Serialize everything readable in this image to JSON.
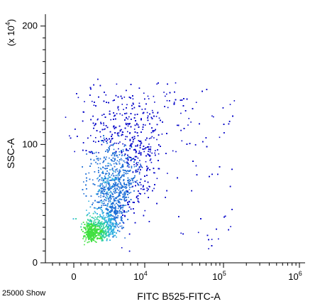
{
  "chart_data": {
    "type": "scatter",
    "style": "flow-cytometry-density-dot-plot",
    "xlabel": "FITC B525-FITC-A",
    "ylabel": "SSC-A",
    "y_multiplier": "(x 10^4)",
    "x_scale": "biexponential",
    "y_scale": "linear",
    "xlim": [
      -2000,
      1000000
    ],
    "ylim": [
      0,
      2100000
    ],
    "x_ticks": [
      "0",
      "10^4",
      "10^5",
      "10^6"
    ],
    "y_ticks": [
      "0",
      "100",
      "200"
    ],
    "events": 25000,
    "density_colors": [
      "#0000c8",
      "#1f6fd6",
      "#2fb0e0",
      "#30d0a0",
      "#40e040"
    ],
    "population": {
      "peak_x": 1000,
      "peak_y": 220000,
      "upper_extent_y": 1600000,
      "max_x": 150000
    }
  },
  "footer": {
    "events_text": "25000 Show"
  }
}
